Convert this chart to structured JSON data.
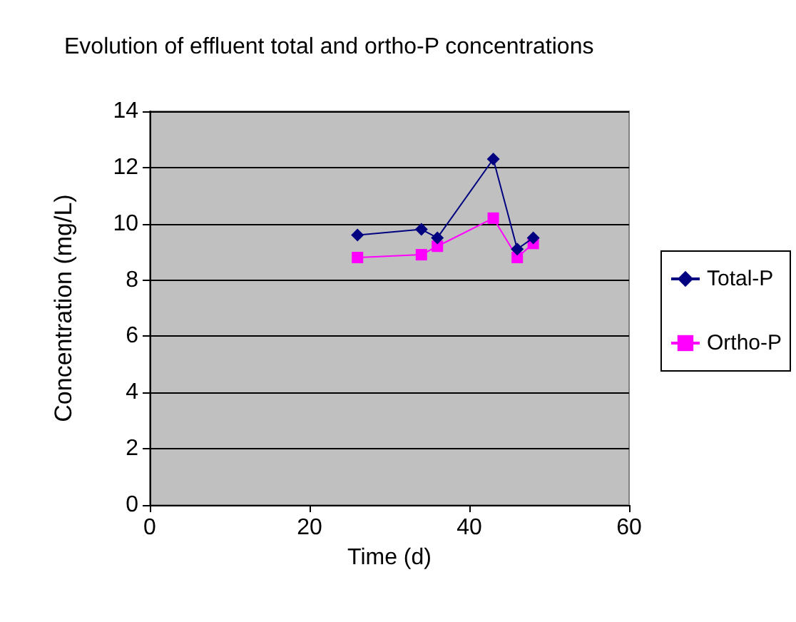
{
  "chart_data": {
    "type": "line",
    "title": "Evolution of effluent total and ortho-P concentrations",
    "xlabel": "Time (d)",
    "ylabel": "Concentration (mg/L)",
    "xlim": [
      0,
      60
    ],
    "xticks": [
      0,
      20,
      40,
      60
    ],
    "ylim": [
      0,
      14
    ],
    "yticks": [
      0,
      2,
      4,
      6,
      8,
      10,
      12,
      14
    ],
    "grid": "y",
    "legend": "right",
    "series": [
      {
        "name": "Total-P",
        "color": "#000080",
        "marker": "diamond",
        "x": [
          26,
          34,
          36,
          43,
          46,
          48
        ],
        "values": [
          9.6,
          9.8,
          9.5,
          12.3,
          9.1,
          9.5
        ]
      },
      {
        "name": "Ortho-P",
        "color": "#ff00ff",
        "marker": "square",
        "x": [
          26,
          34,
          36,
          43,
          46,
          48
        ],
        "values": [
          8.8,
          8.9,
          9.2,
          10.2,
          8.8,
          9.3
        ]
      }
    ]
  }
}
